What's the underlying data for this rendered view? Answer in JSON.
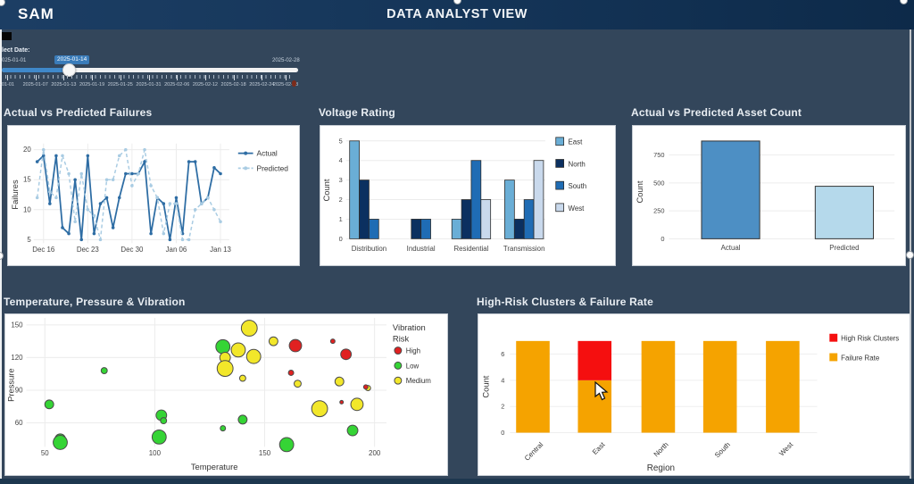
{
  "header": {
    "logo": "SAM",
    "title": "DATA ANALYST VIEW"
  },
  "theme": {
    "header_bg": "#143457",
    "background": "#33465b",
    "accent_blue": "#3f88c9",
    "card_bg": "#ffffff",
    "title_text": "#e9eef3"
  },
  "date_slider": {
    "label": "lect Date:",
    "min_label": "025-01-01",
    "value": "2025-01-14",
    "max_label": "2025-02-28",
    "ticks": [
      "-01-01",
      "2025-01-07",
      "2025-01-13",
      "2025-01-19",
      "2025-01-25",
      "2025-01-31",
      "2025-02-06",
      "2025-02-12",
      "2025-02-18",
      "2025-02-24",
      "2025-02-28"
    ]
  },
  "chart_data": [
    {
      "type": "line",
      "title": "Actual vs Predicted Failures",
      "ylabel": "Failures",
      "yticks": [
        5,
        10,
        15,
        20
      ],
      "ylim": [
        4,
        21
      ],
      "xticks": [
        "Dec 16",
        "Dec 23",
        "Dec 30",
        "Jan 06",
        "Jan 13"
      ],
      "xtick_positions": [
        1,
        8,
        15,
        22,
        29
      ],
      "x_start": "Dec 15",
      "series": [
        {
          "name": "Actual",
          "color": "#2e6da4",
          "style": "solid",
          "values": [
            18,
            19,
            11,
            19,
            7,
            6,
            15,
            5,
            19,
            6,
            11,
            12,
            7,
            12,
            16,
            16,
            16,
            18,
            6,
            12,
            11,
            5,
            12,
            6,
            18,
            18,
            11,
            12,
            17,
            16
          ]
        },
        {
          "name": "Predicted",
          "color": "#a9cce3",
          "style": "dashed",
          "values": [
            12,
            20,
            13,
            12,
            19,
            16,
            8,
            16,
            10,
            9,
            5,
            15,
            15,
            19,
            20,
            14,
            16,
            20,
            14,
            12,
            6,
            11,
            11,
            5,
            5,
            10,
            11,
            12,
            10,
            8
          ]
        }
      ],
      "legend_position": "right"
    },
    {
      "type": "bar",
      "title": "Voltage Rating",
      "ylabel": "Count",
      "yticks": [
        0,
        1,
        2,
        3,
        4,
        5
      ],
      "ylim": [
        0,
        5
      ],
      "categories": [
        "Distribution",
        "Industrial",
        "Residential",
        "Transmission"
      ],
      "series": [
        {
          "name": "East",
          "color": "#6aaed6",
          "values": [
            5,
            0,
            1,
            3
          ]
        },
        {
          "name": "North",
          "color": "#0b3060",
          "values": [
            3,
            1,
            2,
            1
          ]
        },
        {
          "name": "South",
          "color": "#1f6cb4",
          "values": [
            1,
            1,
            4,
            2
          ]
        },
        {
          "name": "West",
          "color": "#c9d9ec",
          "values": [
            0,
            0,
            2,
            4
          ]
        }
      ],
      "legend_position": "right"
    },
    {
      "type": "bar",
      "title": "Actual vs Predicted Asset Count",
      "ylabel": "Count",
      "yticks": [
        0,
        250,
        500,
        750
      ],
      "ylim": [
        0,
        950
      ],
      "categories": [
        "Actual",
        "Predicted"
      ],
      "series": [
        {
          "name": "Count",
          "values": [
            875,
            470
          ],
          "colors": [
            "#4d8fc4",
            "#b5d9eb"
          ]
        }
      ],
      "legend_position": "none"
    },
    {
      "type": "scatter",
      "title": "Temperature, Pressure & Vibration",
      "xlabel": "Temperature",
      "ylabel": "Pressure",
      "xticks": [
        50,
        100,
        150,
        200
      ],
      "yticks": [
        60,
        90,
        120,
        150
      ],
      "xlim": [
        40,
        210
      ],
      "ylim": [
        35,
        155
      ],
      "legend_title": "Vibration Risk",
      "groups": [
        {
          "name": "High",
          "color": "#e02121",
          "points": [
            [
              164,
              131,
              7
            ],
            [
              162,
              106,
              3
            ],
            [
              181,
              135,
              2.5
            ],
            [
              187,
              123,
              6
            ],
            [
              185,
              79,
              2
            ],
            [
              196,
              93,
              2.5
            ]
          ]
        },
        {
          "name": "Low",
          "color": "#35d435",
          "points": [
            [
              52,
              77,
              5
            ],
            [
              57,
              45,
              6
            ],
            [
              57,
              42,
              8
            ],
            [
              77,
              108,
              3.5
            ],
            [
              103,
              67,
              6
            ],
            [
              104,
              62,
              3.5
            ],
            [
              102,
              47,
              8
            ],
            [
              131,
              55,
              3
            ],
            [
              140,
              63,
              5
            ],
            [
              131,
              130,
              8
            ],
            [
              160,
              40,
              8
            ],
            [
              190,
              53,
              6
            ]
          ]
        },
        {
          "name": "Medium",
          "color": "#f2e72a",
          "points": [
            [
              132,
              120,
              6
            ],
            [
              132,
              110,
              9
            ],
            [
              138,
              127,
              8
            ],
            [
              140,
              101,
              3.5
            ],
            [
              143,
              147,
              9
            ],
            [
              145,
              121,
              8
            ],
            [
              154,
              135,
              5
            ],
            [
              165,
              96,
              4
            ],
            [
              175,
              73,
              9
            ],
            [
              184,
              98,
              5
            ],
            [
              192,
              77,
              7
            ],
            [
              197,
              92,
              3
            ]
          ]
        }
      ]
    },
    {
      "type": "stacked-bar",
      "title": "High-Risk Clusters & Failure Rate",
      "xlabel": "Region",
      "ylabel": "Count",
      "yticks": [
        0,
        2,
        4,
        6
      ],
      "ylim": [
        0,
        7.8
      ],
      "categories": [
        "Central",
        "East",
        "North",
        "South",
        "West"
      ],
      "series": [
        {
          "name": "Failure Rate",
          "color": "#f5a300",
          "values": [
            7,
            4,
            7,
            7,
            7
          ]
        },
        {
          "name": "High Risk Clusters",
          "color": "#f50f0f",
          "values": [
            0,
            3,
            0,
            0,
            0
          ]
        }
      ],
      "legend_order": [
        "High Risk Clusters",
        "Failure Rate"
      ]
    }
  ]
}
